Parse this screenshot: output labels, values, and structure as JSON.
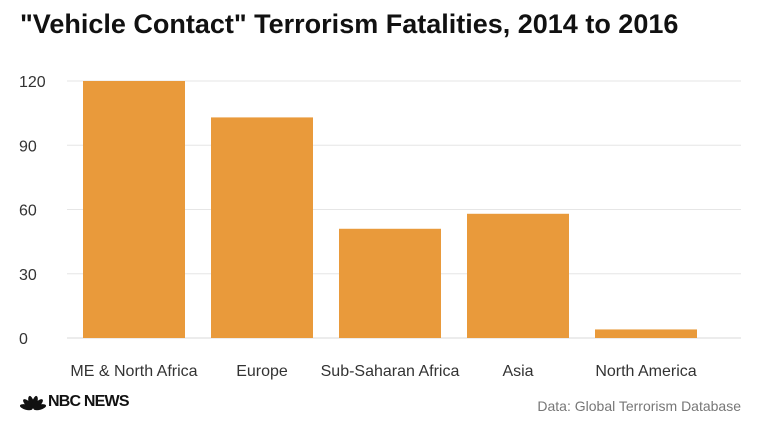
{
  "chart_data": {
    "type": "bar",
    "title": "\"Vehicle Contact\" Terrorism Fatalities, 2014 to 2016",
    "categories": [
      "ME & North Africa",
      "Europe",
      "Sub-Saharan Africa",
      "Asia",
      "North America"
    ],
    "values": [
      120,
      103,
      51,
      58,
      4
    ],
    "yticks": [
      0,
      30,
      60,
      90,
      120
    ],
    "ylim": [
      0,
      120
    ],
    "xlabel": "",
    "ylabel": "",
    "grid": true,
    "bar_color": "#e99a3b"
  },
  "footer": {
    "logo_text": "NBC NEWS",
    "source": "Data: Global Terrorism Database"
  },
  "colors": {
    "grid": "#e6e6e6",
    "text": "#333333",
    "peacock": [
      "#f5a623",
      "#e8462a",
      "#a6388a",
      "#2f5fb3",
      "#3aa655",
      "#f2c21a"
    ]
  }
}
